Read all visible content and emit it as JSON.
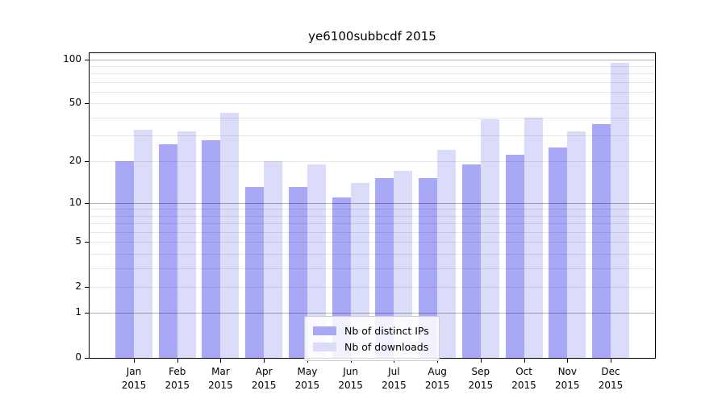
{
  "chart_data": {
    "type": "bar",
    "title": "ye6100subbcdf 2015",
    "categories": [
      "Jan",
      "Feb",
      "Mar",
      "Apr",
      "May",
      "Jun",
      "Jul",
      "Aug",
      "Sep",
      "Oct",
      "Nov",
      "Dec"
    ],
    "category_year": "2015",
    "series": [
      {
        "name": "Nb of distinct IPs",
        "color": "#a8a8f6",
        "values": [
          20,
          26,
          28,
          13,
          13,
          11,
          15,
          15,
          19,
          22,
          25,
          36
        ]
      },
      {
        "name": "Nb of downloads",
        "color": "#dbdbfa",
        "values": [
          33,
          32,
          43,
          20,
          19,
          14,
          17,
          24,
          39,
          40,
          32,
          95
        ]
      }
    ],
    "xlabel": "",
    "ylabel": "",
    "yscale": "log1p",
    "ylim": [
      0,
      110
    ],
    "ytick_values": [
      100,
      50,
      20,
      10,
      5,
      2,
      1,
      0
    ],
    "grid": {
      "on": true,
      "major_lines": [
        1,
        10,
        100
      ],
      "minor_lines": [
        2,
        3,
        4,
        5,
        6,
        7,
        8,
        9,
        20,
        30,
        40,
        50,
        60,
        70,
        80,
        90
      ]
    },
    "legend": {
      "position": "lower-center",
      "entries": [
        "Nb of distinct IPs",
        "Nb of downloads"
      ]
    }
  },
  "colors": {
    "background": "#ffffff",
    "axis": "#000000",
    "grid_minor": "rgba(0,0,0,0.09)",
    "grid_major": "rgba(0,0,0,0.30)",
    "legend_border": "#cccccc"
  }
}
